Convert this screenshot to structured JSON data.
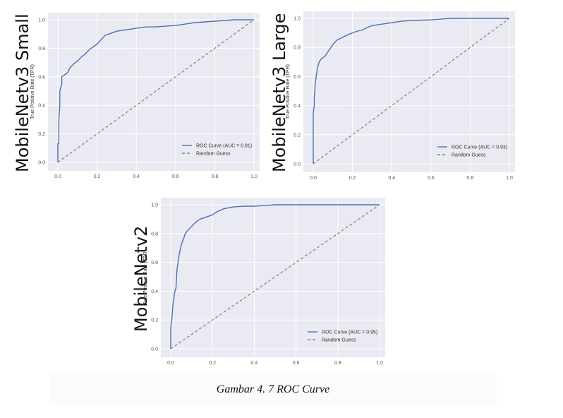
{
  "figure": {
    "caption": "Gambar 4. 7 ROC Curve",
    "colors": {
      "plot_bg": "#eaeaf2",
      "grid": "#ffffff",
      "roc": "#4c72b0",
      "random": "#808080"
    }
  },
  "chart_data": [
    {
      "type": "line",
      "model_title": "MobileNetv3 Small",
      "ylabel": "True Positive Rate (TPR)",
      "xlim": [
        0,
        1
      ],
      "ylim": [
        0,
        1
      ],
      "xticks": [
        "0.0",
        "0.2",
        "0.4",
        "0.6",
        "0.8",
        "1.0"
      ],
      "yticks": [
        "0.0",
        "0.2",
        "0.4",
        "0.6",
        "0.8",
        "1.0"
      ],
      "grid": true,
      "legend_position": "lower-right",
      "series": [
        {
          "name": "ROC Curve (AUC = 0.91)",
          "style": "solid",
          "x": [
            0,
            0,
            0.005,
            0.005,
            0.01,
            0.01,
            0.02,
            0.02,
            0.03,
            0.04,
            0.05,
            0.06,
            0.08,
            0.1,
            0.12,
            0.14,
            0.16,
            0.18,
            0.2,
            0.22,
            0.24,
            0.26,
            0.28,
            0.3,
            0.35,
            0.4,
            0.45,
            0.5,
            0.6,
            0.7,
            0.8,
            0.9,
            1.0
          ],
          "y": [
            0,
            0.13,
            0.13,
            0.3,
            0.4,
            0.5,
            0.55,
            0.6,
            0.61,
            0.62,
            0.63,
            0.66,
            0.69,
            0.71,
            0.74,
            0.76,
            0.79,
            0.81,
            0.83,
            0.86,
            0.89,
            0.9,
            0.91,
            0.92,
            0.93,
            0.94,
            0.95,
            0.95,
            0.96,
            0.98,
            0.99,
            1.0,
            1.0
          ]
        },
        {
          "name": "Random Guess",
          "style": "dashed",
          "x": [
            0,
            1
          ],
          "y": [
            0,
            1
          ]
        }
      ]
    },
    {
      "type": "line",
      "model_title": "MobileNetv3 Large",
      "ylabel": "True Positive Rate (TPR)",
      "xlim": [
        0,
        1
      ],
      "ylim": [
        0,
        1
      ],
      "xticks": [
        "0.0",
        "0.2",
        "0.4",
        "0.6",
        "0.8",
        "1.0"
      ],
      "yticks": [
        "0.0",
        "0.2",
        "0.4",
        "0.6",
        "0.8",
        "1.0"
      ],
      "grid": true,
      "legend_position": "lower-right",
      "series": [
        {
          "name": "ROC Curve (AUC = 0.93)",
          "style": "solid",
          "x": [
            0,
            0,
            0.005,
            0.005,
            0.01,
            0.015,
            0.02,
            0.03,
            0.04,
            0.05,
            0.06,
            0.07,
            0.08,
            0.1,
            0.12,
            0.15,
            0.18,
            0.2,
            0.22,
            0.25,
            0.28,
            0.3,
            0.35,
            0.4,
            0.45,
            0.5,
            0.6,
            0.7,
            0.8,
            1.0
          ],
          "y": [
            0,
            0.35,
            0.4,
            0.45,
            0.55,
            0.6,
            0.65,
            0.7,
            0.72,
            0.73,
            0.74,
            0.76,
            0.78,
            0.82,
            0.85,
            0.87,
            0.89,
            0.9,
            0.91,
            0.92,
            0.94,
            0.95,
            0.96,
            0.97,
            0.98,
            0.985,
            0.99,
            1.0,
            1.0,
            1.0
          ]
        },
        {
          "name": "Random Guess",
          "style": "dashed",
          "x": [
            0,
            1
          ],
          "y": [
            0,
            1
          ]
        }
      ]
    },
    {
      "type": "line",
      "model_title": "MobileNetv2",
      "ylabel": "True Positive Rate (TPR)",
      "xlim": [
        0,
        1
      ],
      "ylim": [
        0,
        1
      ],
      "xticks": [
        "0.0",
        "0.2",
        "0.4",
        "0.6",
        "0.8",
        "1.0"
      ],
      "yticks": [
        "0.0",
        "0.2",
        "0.4",
        "0.6",
        "0.8",
        "1.0"
      ],
      "grid": true,
      "legend_position": "lower-right",
      "series": [
        {
          "name": "ROC Curve (AUC = 0.95)",
          "style": "solid",
          "x": [
            0,
            0,
            0.005,
            0.01,
            0.015,
            0.02,
            0.025,
            0.03,
            0.035,
            0.04,
            0.05,
            0.06,
            0.07,
            0.08,
            0.1,
            0.12,
            0.14,
            0.16,
            0.18,
            0.2,
            0.22,
            0.25,
            0.28,
            0.3,
            0.35,
            0.4,
            0.5,
            0.6,
            0.8,
            1.0
          ],
          "y": [
            0,
            0.15,
            0.2,
            0.3,
            0.35,
            0.4,
            0.42,
            0.55,
            0.6,
            0.65,
            0.72,
            0.76,
            0.8,
            0.82,
            0.85,
            0.88,
            0.9,
            0.91,
            0.92,
            0.93,
            0.95,
            0.97,
            0.98,
            0.985,
            0.99,
            0.99,
            1.0,
            1.0,
            1.0,
            1.0
          ]
        },
        {
          "name": "Random Guess",
          "style": "dashed",
          "x": [
            0,
            1
          ],
          "y": [
            0,
            1
          ]
        }
      ]
    }
  ]
}
